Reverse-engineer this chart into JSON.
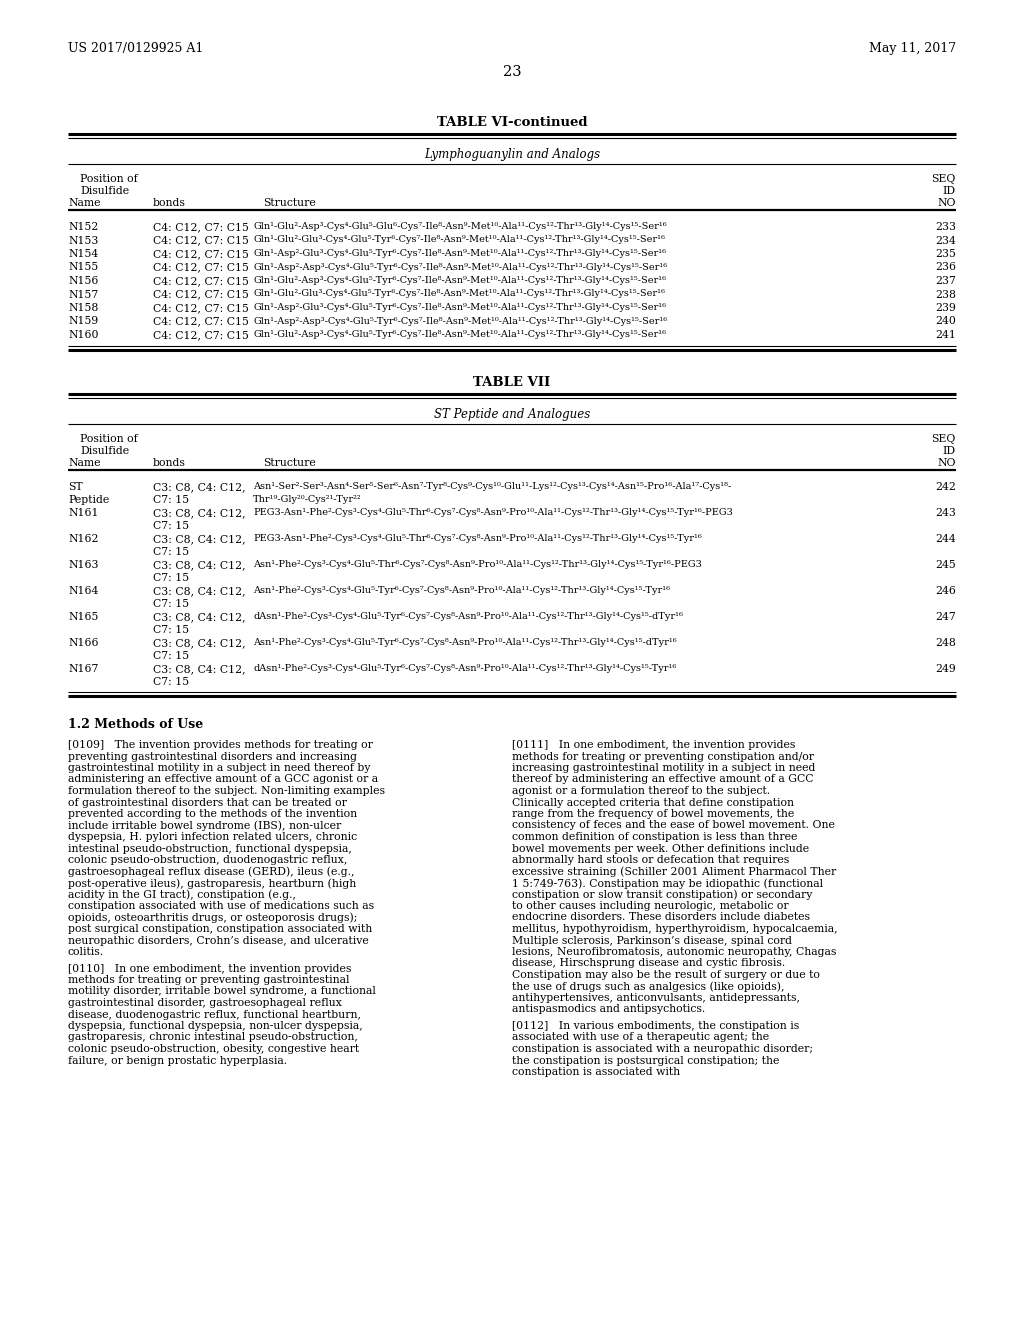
{
  "header_left": "US 2017/0129925 A1",
  "header_right": "May 11, 2017",
  "page_number": "23",
  "table6_title": "TABLE VI-continued",
  "table6_subtitle": "Lymphoguanylin and Analogs",
  "table6_rows": [
    [
      "N152",
      "C4: C12, C7: C15",
      "Gln¹-Glu²-Asp³-Cys⁴-Glu⁵-Glu⁶-Cys⁷-Ile⁸-Asn⁹-Met¹⁰-Ala¹¹-Cys¹²-Thr¹³-Gly¹⁴-Cys¹⁵-Ser¹⁶",
      "233"
    ],
    [
      "N153",
      "C4: C12, C7: C15",
      "Gln¹-Glu²-Glu³-Cys⁴-Glu⁵-Tyr⁶-Cys⁷-Ile⁸-Asn⁹-Met¹⁰-Ala¹¹-Cys¹²-Thr¹³-Gly¹⁴-Cys¹⁵-Ser¹⁶",
      "234"
    ],
    [
      "N154",
      "C4: C12, C7: C15",
      "Gln¹-Asp²-Glu³-Cys⁴-Glu⁵-Tyr⁶-Cys⁷-Ile⁸-Asn⁹-Met¹⁰-Ala¹¹-Cys¹²-Thr¹³-Gly¹⁴-Cys¹⁵-Ser¹⁶",
      "235"
    ],
    [
      "N155",
      "C4: C12, C7: C15",
      "Gln¹-Asp²-Asp³-Cys⁴-Glu⁵-Tyr⁶-Cys⁷-Ile⁸-Asn⁹-Met¹⁰-Ala¹¹-Cys¹²-Thr¹³-Gly¹⁴-Cys¹⁵-Ser¹⁶",
      "236"
    ],
    [
      "N156",
      "C4: C12, C7: C15",
      "Gln¹-Glu²-Asp³-Cys⁴-Glu⁵-Tyr⁶-Cys⁷-Ile⁸-Asn⁹-Met¹⁰-Ala¹¹-Cys¹²-Thr¹³-Gly¹⁴-Cys¹⁵-Ser¹⁶",
      "237"
    ],
    [
      "N157",
      "C4: C12, C7: C15",
      "Gln¹-Glu²-Glu³-Cys⁴-Glu⁵-Tyr⁶-Cys⁷-Ile⁸-Asn⁹-Met¹⁰-Ala¹¹-Cys¹²-Thr¹³-Gly¹⁴-Cys¹⁵-Ser¹⁶",
      "238"
    ],
    [
      "N158",
      "C4: C12, C7: C15",
      "Gln¹-Asp²-Glu³-Cys⁴-Glu⁵-Tyr⁶-Cys⁷-Ile⁸-Asn⁹-Met¹⁰-Ala¹¹-Cys¹²-Thr¹³-Gly¹⁴-Cys¹⁵-Ser¹⁶",
      "239"
    ],
    [
      "N159",
      "C4: C12, C7: C15",
      "Gln¹-Asp²-Asp³-Cys⁴-Glu⁵-Tyr⁶-Cys⁷-Ile⁸-Asn⁹-Met¹⁰-Ala¹¹-Cys¹²-Thr¹³-Gly¹⁴-Cys¹⁵-Ser¹⁶",
      "240"
    ],
    [
      "N160",
      "C4: C12, C7: C15",
      "Gln¹-Glu²-Asp³-Cys⁴-Glu⁵-Tyr⁶-Cys⁷-Ile⁸-Asn⁹-Met¹⁰-Ala¹¹-Cys¹²-Thr¹³-Gly¹⁴-Cys¹⁵-Ser¹⁶",
      "241"
    ]
  ],
  "table7_title": "TABLE VII",
  "table7_subtitle": "ST Peptide and Analogues",
  "table7_rows": [
    [
      "ST\nPeptide",
      "C3: C8, C4: C12,\nC7: 15",
      "Asn¹-Ser²-Ser³-Asn⁴-Ser⁵-Ser⁶-Asn⁷-Tyr⁸-Cys⁹-Cys¹⁰-Glu¹¹-Lys¹²-Cys¹³-Cys¹⁴-Asn¹⁵-Pro¹⁶-Ala¹⁷-Cys¹⁸-\nThr¹⁹-Gly²⁰-Cys²¹-Tyr²²",
      "242"
    ],
    [
      "N161",
      "C3: C8, C4: C12,\nC7: 15",
      "PEG3-Asn¹-Phe²-Cys³-Cys⁴-Glu⁵-Thr⁶-Cys⁷-Cys⁸-Asn⁹-Pro¹⁰-Ala¹¹-Cys¹²-Thr¹³-Gly¹⁴-Cys¹⁵-Tyr¹⁶-PEG3",
      "243"
    ],
    [
      "N162",
      "C3: C8, C4: C12,\nC7: 15",
      "PEG3-Asn¹-Phe²-Cys³-Cys⁴-Glu⁵-Thr⁶-Cys⁷-Cys⁸-Asn⁹-Pro¹⁰-Ala¹¹-Cys¹²-Thr¹³-Gly¹⁴-Cys¹⁵-Tyr¹⁶",
      "244"
    ],
    [
      "N163",
      "C3: C8, C4: C12,\nC7: 15",
      "Asn¹-Phe²-Cys³-Cys⁴-Glu⁵-Thr⁶-Cys⁷-Cys⁸-Asn⁹-Pro¹⁰-Ala¹¹-Cys¹²-Thr¹³-Gly¹⁴-Cys¹⁵-Tyr¹⁶-PEG3",
      "245"
    ],
    [
      "N164",
      "C3: C8, C4: C12,\nC7: 15",
      "Asn¹-Phe²-Cys³-Cys⁴-Glu⁵-Tyr⁶-Cys⁷-Cys⁸-Asn⁹-Pro¹⁰-Ala¹¹-Cys¹²-Thr¹³-Gly¹⁴-Cys¹⁵-Tyr¹⁶",
      "246"
    ],
    [
      "N165",
      "C3: C8, C4: C12,\nC7: 15",
      "dAsn¹-Phe²-Cys³-Cys⁴-Glu⁵-Tyr⁶-Cys⁷-Cys⁸-Asn⁹-Pro¹⁰-Ala¹¹-Cys¹²-Thr¹³-Gly¹⁴-Cys¹⁵-dTyr¹⁶",
      "247"
    ],
    [
      "N166",
      "C3: C8, C4: C12,\nC7: 15",
      "Asn¹-Phe²-Cys³-Cys⁴-Glu⁵-Tyr⁶-Cys⁷-Cys⁸-Asn⁹-Pro¹⁰-Ala¹¹-Cys¹²-Thr¹³-Gly¹⁴-Cys¹⁵-dTyr¹⁶",
      "248"
    ],
    [
      "N167",
      "C3: C8, C4: C12,\nC7: 15",
      "dAsn¹-Phe²-Cys³-Cys⁴-Glu⁵-Tyr⁶-Cys⁷-Cys⁸-Asn⁹-Pro¹⁰-Ala¹¹-Cys¹²-Thr¹³-Gly¹⁴-Cys¹⁵-Tyr¹⁶",
      "249"
    ]
  ],
  "section_title": "1.2 Methods of Use",
  "para_0109_label": "[0109]",
  "para_0109_text": "   The invention provides methods for treating or preventing gastrointestinal disorders and increasing gastrointestinal motility in a subject in need thereof by administering an effective amount of a GCC agonist or a formulation thereof to the subject. Non-limiting examples of gastrointestinal disorders that can be treated or prevented according to the methods of the invention include irritable bowel syndrome (IBS), non-ulcer dyspepsia, H. pylori infection related ulcers, chronic intestinal pseudo-obstruction, functional dyspepsia, colonic pseudo-obstruction, duodenogastric reflux, gastroesophageal reflux disease (GERD), ileus (e.g., post-operative ileus), gastroparesis, heartburn (high acidity in the GI tract), constipation (e.g., constipation associated with use of medications such as opioids, osteoarthritis drugs, or osteoporosis drugs); post surgical constipation, constipation associated with neuropathic disorders, Crohn’s disease, and ulcerative colitis.",
  "para_0110_label": "[0110]",
  "para_0110_text": "   In one embodiment, the invention provides methods for treating or preventing gastrointestinal motility disorder, irritable bowel syndrome, a functional gastrointestinal disorder, gastroesophageal reflux disease, duodenogastric reflux, functional heartburn, dyspepsia, functional dyspepsia, non-ulcer dyspepsia, gastroparesis, chronic intestinal pseudo-obstruction, colonic pseudo-obstruction, obesity, congestive heart failure, or benign prostatic hyperplasia.",
  "para_0111_label": "[0111]",
  "para_0111_text": "   In one embodiment, the invention provides methods for treating or preventing constipation and/or increasing gastrointestinal motility in a subject in need thereof by administering an effective amount of a GCC agonist or a formulation thereof to the subject. Clinically accepted criteria that define constipation range from the frequency of bowel movements, the consistency of feces and the ease of bowel movement. One common definition of constipation is less than three bowel movements per week. Other definitions include abnormally hard stools or defecation that requires excessive straining (Schiller 2001 Aliment Pharmacol Ther 1 5:749-763). Constipation may be idiopathic (functional constipation or slow transit constipation) or secondary to other causes including neurologic, metabolic or endocrine disorders. These disorders include diabetes mellitus, hypothyroidism, hyperthyroidism, hypocalcaemia, Multiple sclerosis, Parkinson’s disease, spinal cord lesions, Neurofibromatosis, autonomic neuropathy, Chagas disease, Hirschsprung disease and cystic fibrosis. Constipation may also be the result of surgery or due to the use of drugs such as analgesics (like opioids), antihypertensives, anticonvulsants, antidepressants, antispasmodics and antipsychotics.",
  "para_0112_label": "[0112]",
  "para_0112_text": "   In various embodiments, the constipation is associated with use of a therapeutic agent; the constipation is associated with a neuropathic disorder; the constipation is postsurgical constipation; the constipation is associated with",
  "bg_color": "#ffffff",
  "text_color": "#000000"
}
